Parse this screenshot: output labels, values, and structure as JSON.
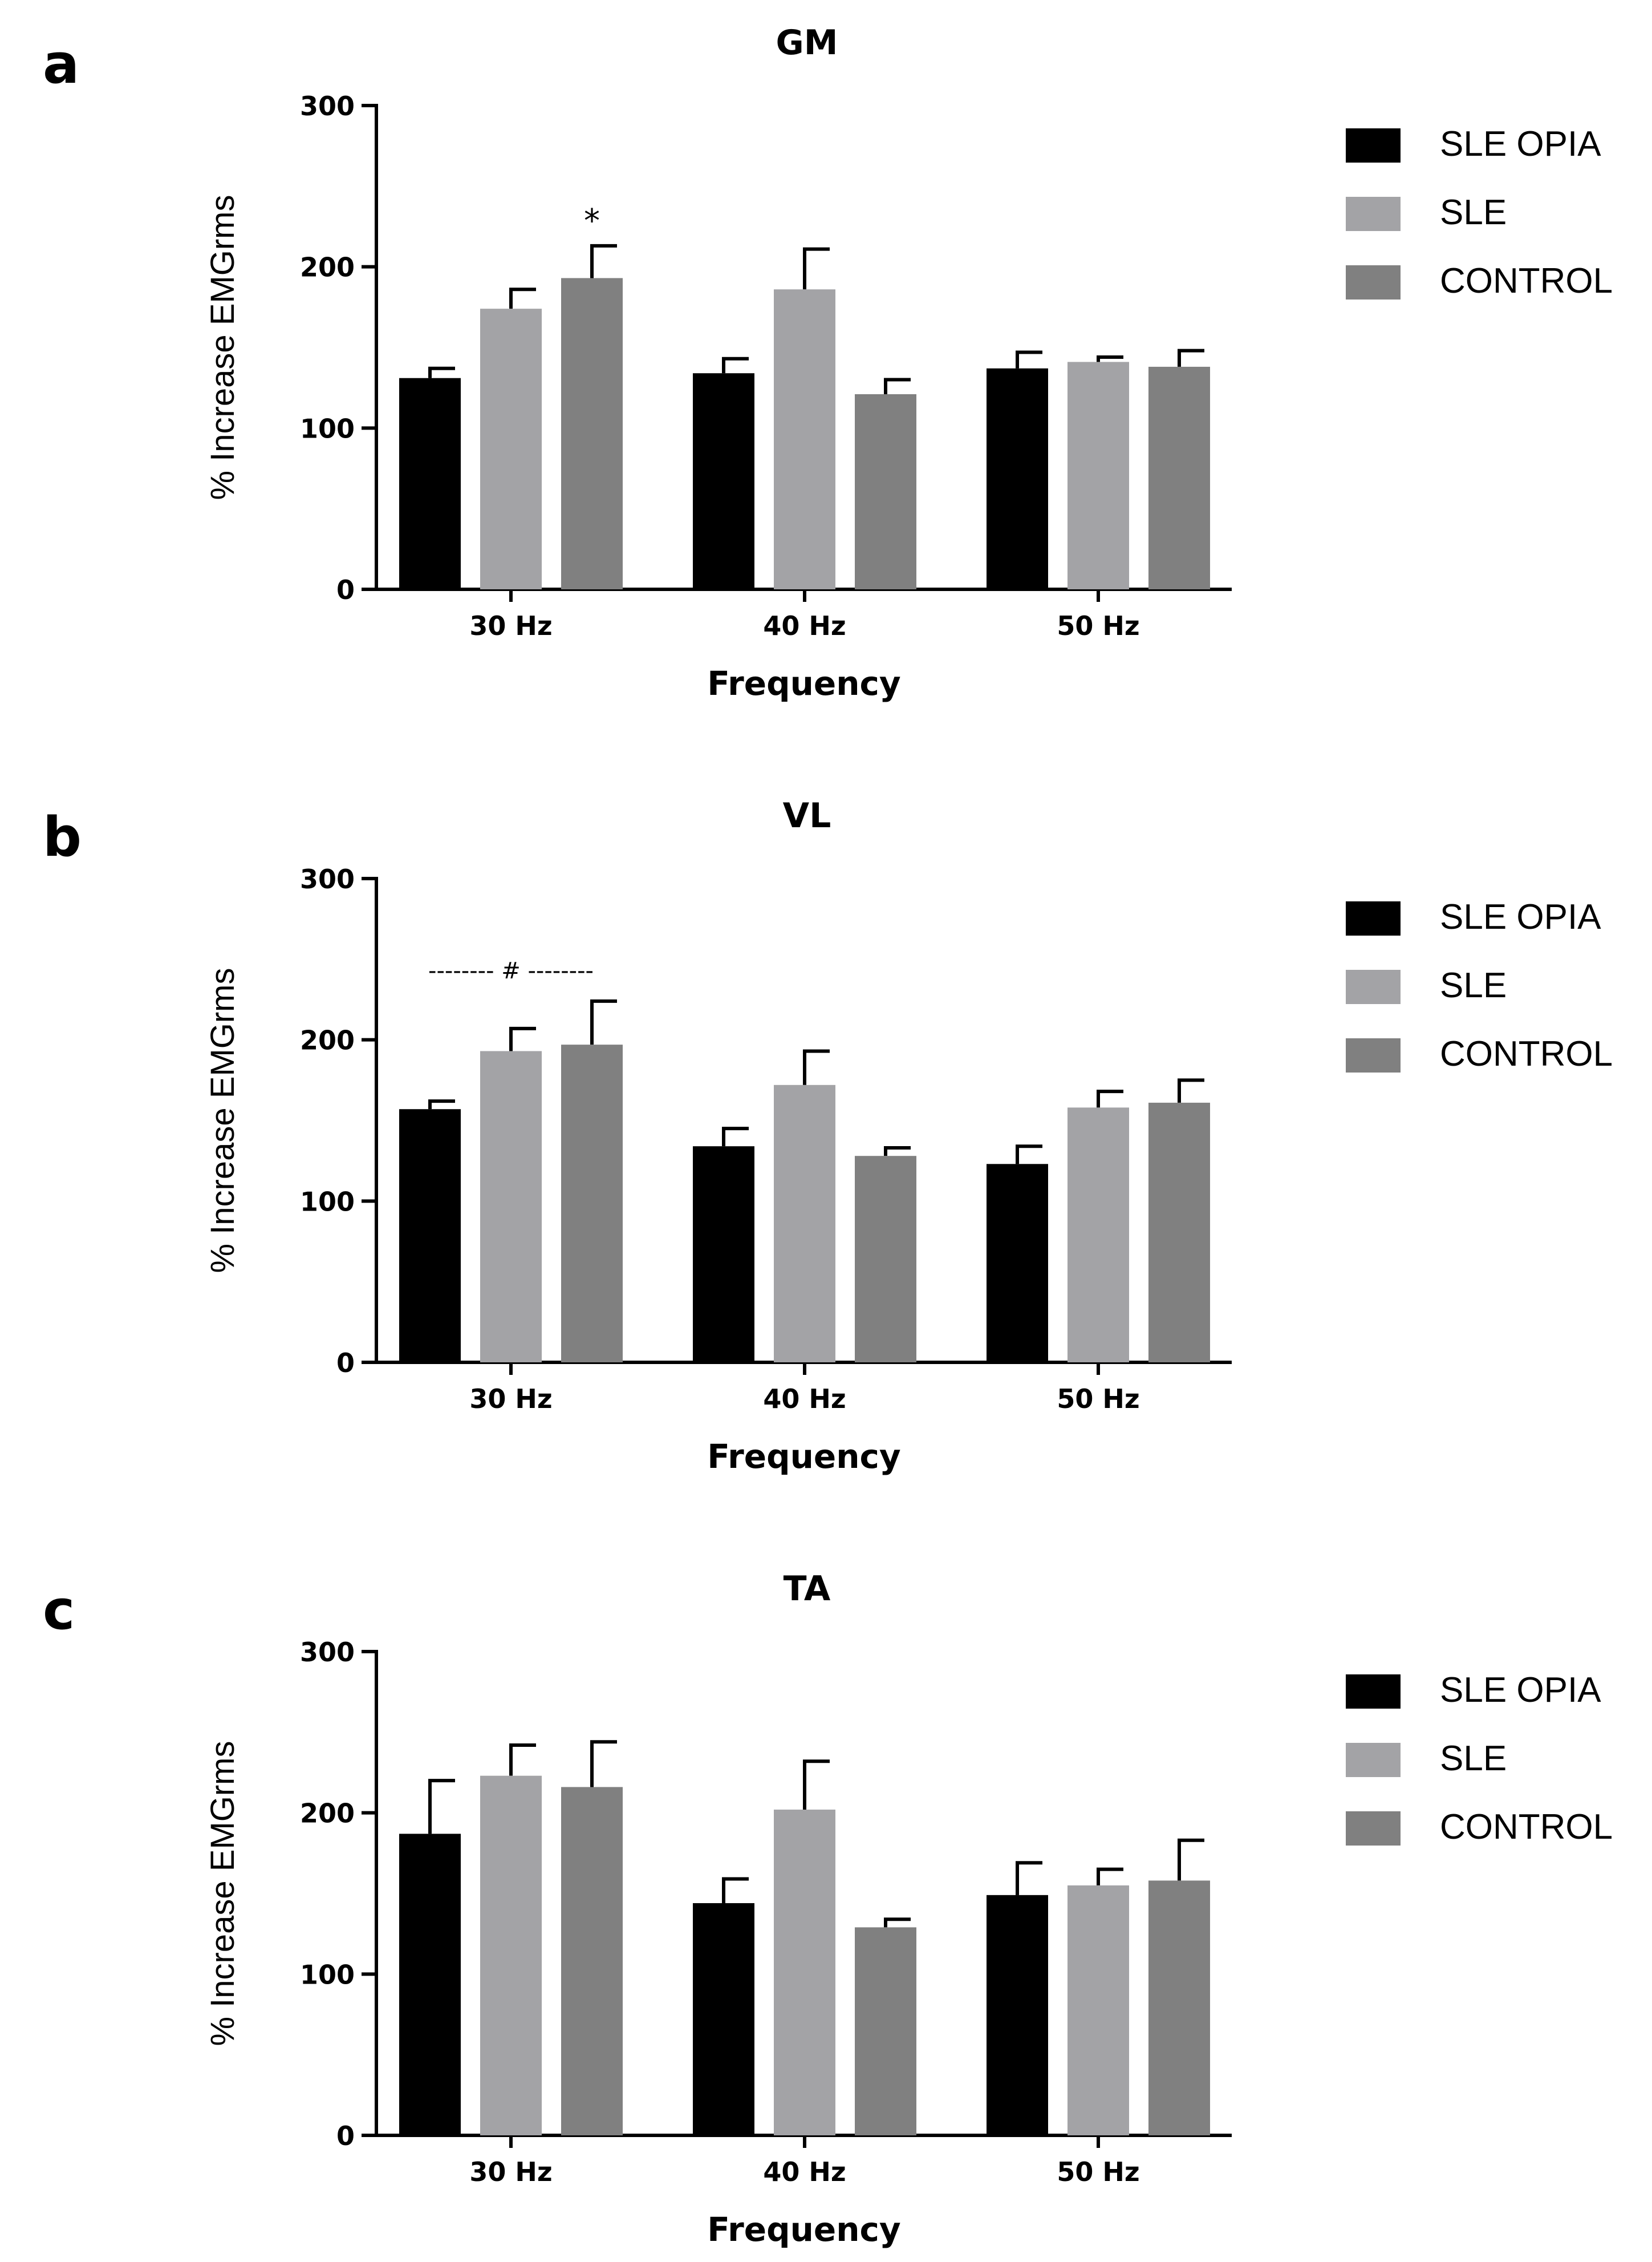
{
  "chart_data": [
    {
      "panel": "a",
      "type": "bar",
      "title": "GM",
      "xlabel": "Frequency",
      "ylabel": "% Increase EMGrms",
      "ylim": [
        0,
        300
      ],
      "yticks": [
        "0",
        "100",
        "200",
        "300"
      ],
      "categories": [
        "30 Hz",
        "40 Hz",
        "50 Hz"
      ],
      "series": [
        {
          "name": "SLE OPIA",
          "color": "#000000",
          "values": [
            131,
            134,
            137
          ],
          "errors": [
            6,
            9,
            10
          ]
        },
        {
          "name": "SLE",
          "color": "#a3a3a6",
          "values": [
            174,
            186,
            141
          ],
          "errors": [
            12,
            25,
            3
          ]
        },
        {
          "name": "CONTROL",
          "color": "#808080",
          "values": [
            193,
            121,
            138
          ],
          "errors": [
            20,
            9,
            10
          ]
        }
      ],
      "annotation": {
        "text": "*",
        "category": 0,
        "series": 2
      }
    },
    {
      "panel": "b",
      "type": "bar",
      "title": "VL",
      "xlabel": "Frequency",
      "ylabel": "% Increase EMGrms",
      "ylim": [
        0,
        300
      ],
      "yticks": [
        "0",
        "100",
        "200",
        "300"
      ],
      "categories": [
        "30 Hz",
        "40 Hz",
        "50 Hz"
      ],
      "series": [
        {
          "name": "SLE OPIA",
          "color": "#000000",
          "values": [
            157,
            134,
            123
          ],
          "errors": [
            5,
            11,
            11
          ]
        },
        {
          "name": "SLE",
          "color": "#a3a3a6",
          "values": [
            193,
            172,
            158
          ],
          "errors": [
            14,
            21,
            10
          ]
        },
        {
          "name": "CONTROL",
          "color": "#808080",
          "values": [
            197,
            128,
            161
          ],
          "errors": [
            27,
            5,
            14
          ]
        }
      ],
      "annotation": {
        "text": "-------- # --------",
        "category": 0,
        "value": 243
      }
    },
    {
      "panel": "c",
      "type": "bar",
      "title": "TA",
      "xlabel": "Frequency",
      "ylabel": "% Increase EMGrms",
      "ylim": [
        0,
        300
      ],
      "yticks": [
        "0",
        "100",
        "200",
        "300"
      ],
      "categories": [
        "30 Hz",
        "40 Hz",
        "50 Hz"
      ],
      "series": [
        {
          "name": "SLE OPIA",
          "color": "#000000",
          "values": [
            187,
            144,
            149
          ],
          "errors": [
            33,
            15,
            20
          ]
        },
        {
          "name": "SLE",
          "color": "#a3a3a6",
          "values": [
            223,
            202,
            155
          ],
          "errors": [
            19,
            30,
            10
          ]
        },
        {
          "name": "CONTROL",
          "color": "#808080",
          "values": [
            216,
            129,
            158
          ],
          "errors": [
            28,
            5,
            25
          ]
        }
      ]
    }
  ]
}
